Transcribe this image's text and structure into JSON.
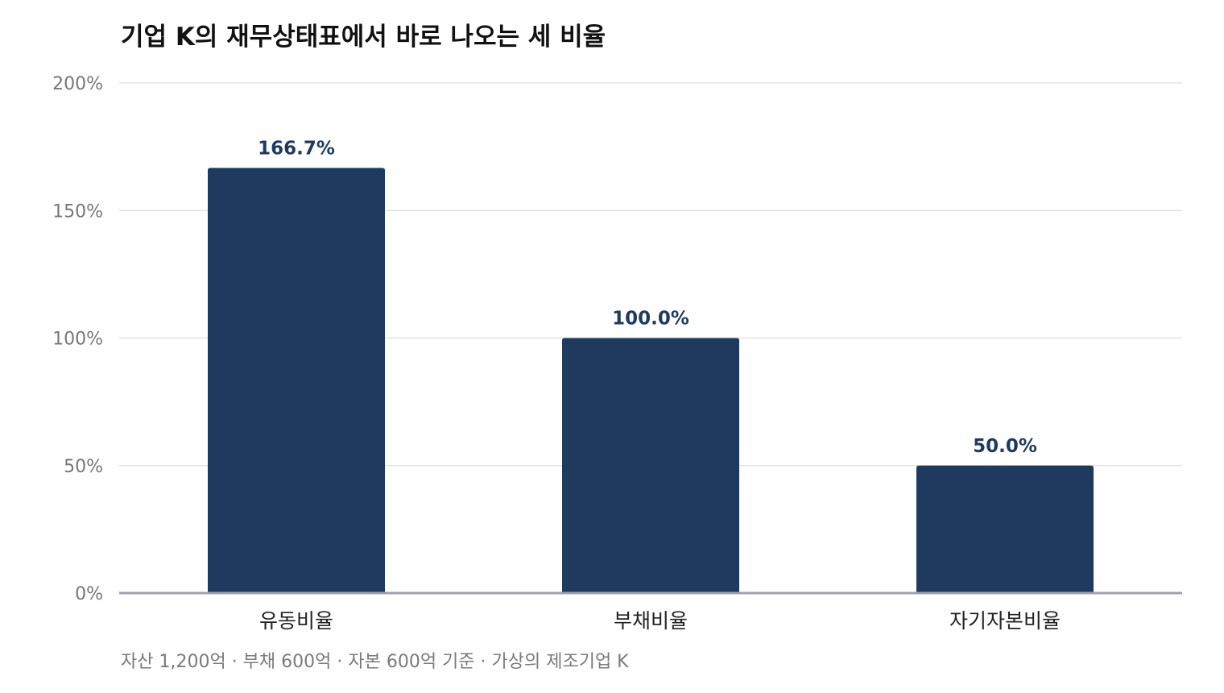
{
  "title": "기업 K의 재무상태표에서 바로 나오는 세 비율",
  "footnote": "자산 1,200억 · 부채 600억 · 자본 600억 기준 · 가상의 제조기업 K",
  "colors": {
    "bar": "#1f3a5f",
    "grid": "#e3e3e3",
    "axis": "#a0a0b0",
    "tick_text": "#777777",
    "value_label": "#1f3a5f",
    "category_text": "#222222"
  },
  "chart_data": {
    "type": "bar",
    "categories": [
      "유동비율",
      "부채비율",
      "자기자본비율"
    ],
    "values": [
      166.7,
      100.0,
      50.0
    ],
    "value_labels": [
      "166.7%",
      "100.0%",
      "50.0%"
    ],
    "ylim": [
      0,
      200
    ],
    "yticks": [
      0,
      50,
      100,
      150,
      200
    ],
    "ytick_labels": [
      "0%",
      "50%",
      "100%",
      "150%",
      "200%"
    ],
    "grid": true,
    "legend": "none"
  }
}
